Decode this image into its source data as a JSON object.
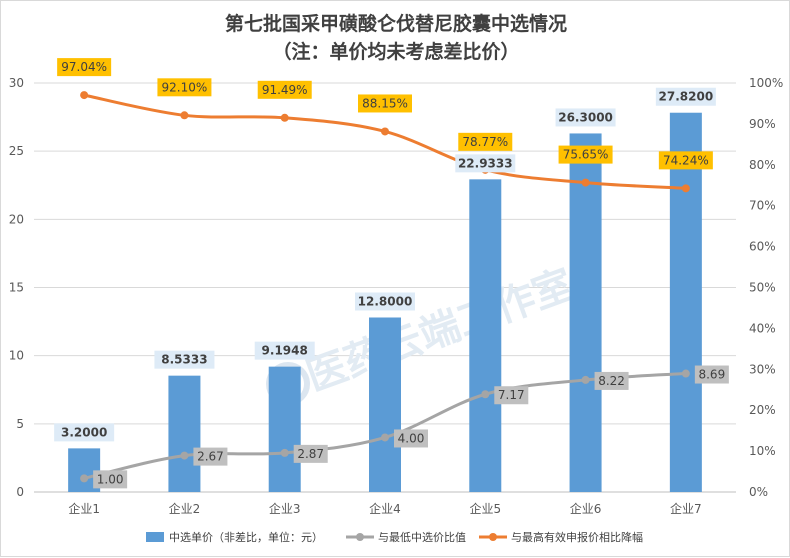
{
  "chart_data": {
    "type": "bar",
    "title": "第七批国采甲磺酸仑伐替尼胶囊中选情况",
    "subtitle": "（注：单价均未考虑差比价）",
    "categories": [
      "企业1",
      "企业2",
      "企业3",
      "企业4",
      "企业5",
      "企业6",
      "企业7"
    ],
    "ylim_left": [
      0,
      30
    ],
    "left_ticks": [
      "0",
      "5",
      "10",
      "15",
      "20",
      "25",
      "30"
    ],
    "ylim_right": [
      0,
      100
    ],
    "right_ticks": [
      "0%",
      "10%",
      "20%",
      "30%",
      "40%",
      "50%",
      "60%",
      "70%",
      "80%",
      "90%",
      "100%"
    ],
    "grid": true,
    "legend_position": "bottom",
    "series": [
      {
        "name": "中选单价（非差比，单位：元）",
        "type": "bar",
        "axis": "left",
        "color": "#5b9bd5",
        "values": [
          3.2,
          8.5333,
          9.1948,
          12.8,
          22.9333,
          26.3,
          27.82
        ],
        "labels": [
          "3.2000",
          "8.5333",
          "9.1948",
          "12.8000",
          "22.9333",
          "26.3000",
          "27.8200"
        ]
      },
      {
        "name": "与最低中选价比值",
        "type": "line",
        "axis": "left",
        "color": "#a5a5a5",
        "values": [
          1.0,
          2.67,
          2.87,
          4.0,
          7.17,
          8.22,
          8.69
        ],
        "labels": [
          "1.00",
          "2.67",
          "2.87",
          "4.00",
          "7.17",
          "8.22",
          "8.69"
        ]
      },
      {
        "name": "与最高有效申报价相比降幅",
        "type": "line",
        "axis": "right",
        "color": "#ed7d31",
        "values": [
          97.04,
          92.1,
          91.49,
          88.15,
          78.77,
          75.65,
          74.24
        ],
        "labels": [
          "97.04%",
          "92.10%",
          "91.49%",
          "88.15%",
          "78.77%",
          "75.65%",
          "74.24%"
        ]
      }
    ],
    "watermark": "医药云端工作室"
  }
}
